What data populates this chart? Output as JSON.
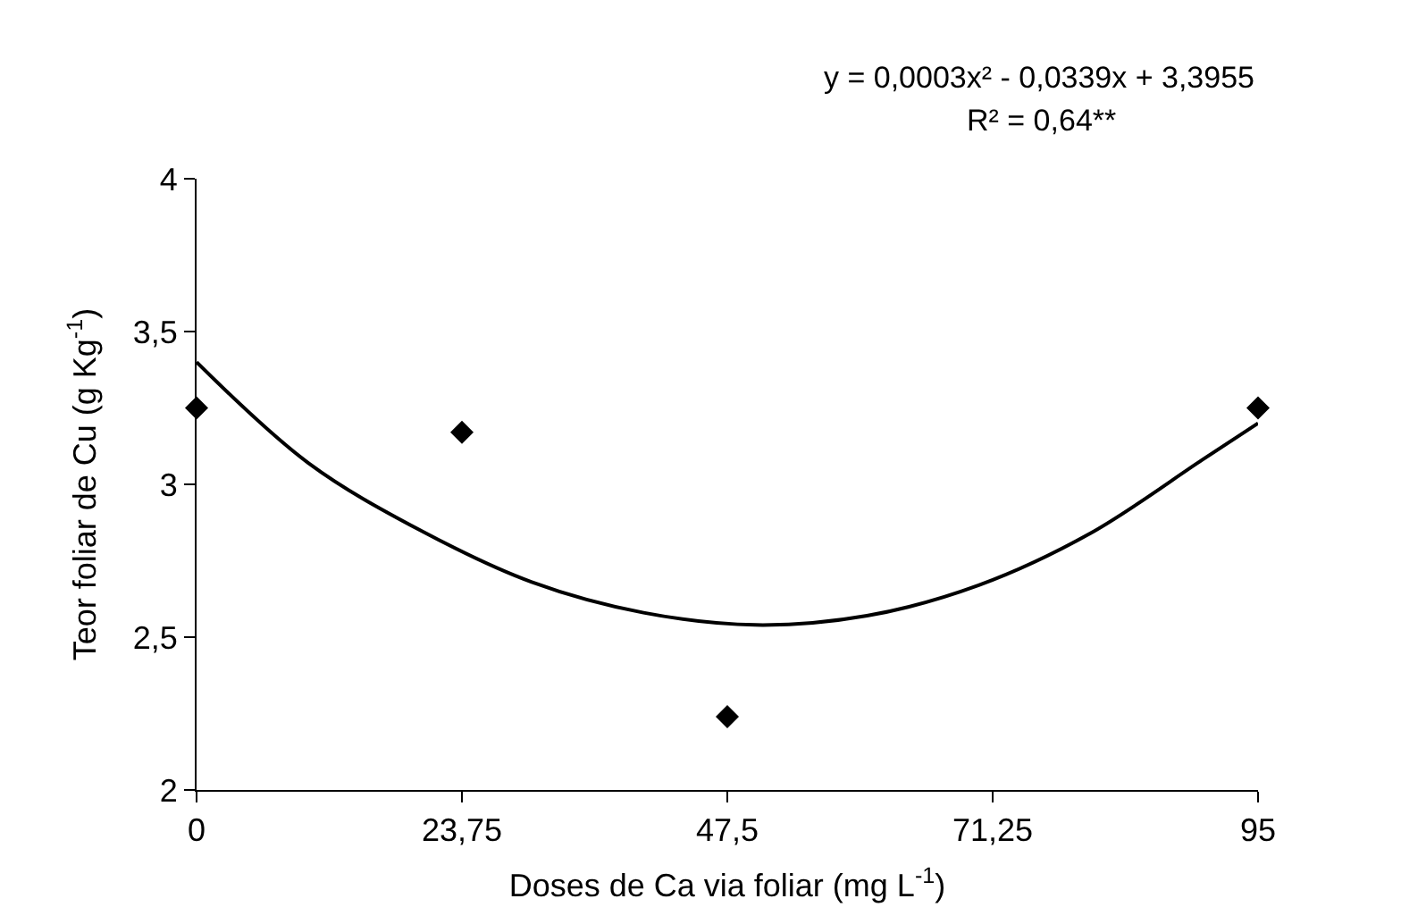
{
  "chart_data": {
    "type": "scatter",
    "xlabel": "Doses de Ca via foliar (mg L$^{-1}$)",
    "ylabel": "Teor foliar de Cu (g Kg$^{-1}$)",
    "annotations": [
      "y = 0,0003x² - 0,0339x + 3,3955",
      "R² = 0,64**"
    ],
    "series": [
      {
        "color": "#000000",
        "marker": "diamond",
        "x": [
          0,
          23.75,
          47.5,
          95
        ],
        "values": [
          3.25,
          3.17,
          2.24,
          3.25
        ]
      },
      {
        "type": "line",
        "color": "#000000",
        "marker": "none",
        "line_style": "solid",
        "x": [
          0,
          10,
          20,
          30,
          40,
          50,
          60,
          70,
          80,
          90,
          95
        ],
        "values": [
          3.4,
          3.07,
          2.85,
          2.68,
          2.58,
          2.54,
          2.57,
          2.67,
          2.84,
          3.08,
          3.2
        ]
      }
    ],
    "xlim": [
      0,
      95
    ],
    "xticks": [
      0,
      {
        "value": 23.75,
        "label": "23,75"
      },
      {
        "value": 47.5,
        "label": "47,5"
      },
      {
        "value": 71.25,
        "label": "71,25"
      },
      95
    ],
    "ylim": [
      2,
      4
    ],
    "yticks": [
      2,
      {
        "value": 2.5,
        "label": "2,5"
      },
      3,
      {
        "value": 3.5,
        "label": "3,5"
      },
      4
    ]
  }
}
